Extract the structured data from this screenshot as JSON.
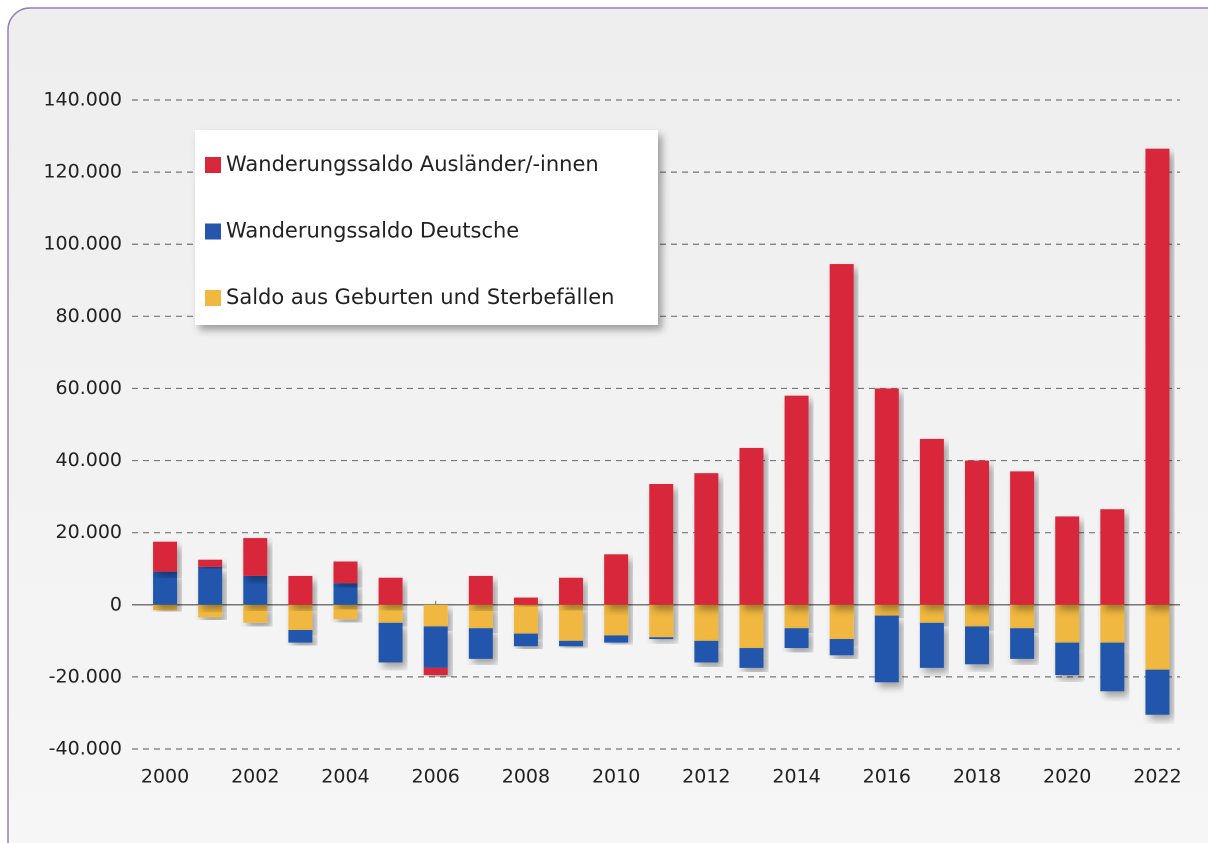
{
  "chart_data": {
    "type": "bar",
    "stacked": true,
    "categories": [
      "2000",
      null,
      "2002",
      null,
      "2004",
      null,
      "2006",
      null,
      "2008",
      null,
      "2010",
      null,
      "2012",
      null,
      "2014",
      null,
      "2016",
      null,
      "2018",
      null,
      "2020",
      null,
      "2022"
    ],
    "series": [
      {
        "name": "Wanderungssaldo Ausländer/-innen",
        "color": "#d8283a",
        "values": [
          8300,
          2000,
          10500,
          8000,
          6000,
          7500,
          -2000,
          8000,
          2000,
          7500,
          14000,
          33500,
          36500,
          43500,
          58000,
          94500,
          60000,
          46000,
          40000,
          37000,
          24500,
          26500,
          126500
        ]
      },
      {
        "name": "Wanderungssaldo Deutsche",
        "color": "#2456ad",
        "values": [
          9200,
          10500,
          8000,
          -3500,
          6000,
          -11000,
          -11500,
          -8500,
          -3500,
          -1500,
          -2000,
          -500,
          -6000,
          -5500,
          -5500,
          -4500,
          -18500,
          -12500,
          -10500,
          -8500,
          -9000,
          -13500,
          -12500
        ]
      },
      {
        "name": "Saldo aus Geburten und Sterbefällen",
        "color": "#f0b83f",
        "values": [
          -1500,
          -3500,
          -5000,
          -7000,
          -4000,
          -5000,
          -6000,
          -6500,
          -8000,
          -10000,
          -8500,
          -9000,
          -10000,
          -12000,
          -6500,
          -9500,
          -3000,
          -5000,
          -6000,
          -6500,
          -10500,
          -10500,
          -18000
        ]
      }
    ],
    "ylim": [
      -40000,
      140000
    ],
    "yticks": [
      {
        "value": -40000,
        "label": "-40.000"
      },
      {
        "value": -20000,
        "label": "-20.000"
      },
      0,
      {
        "value": 20000,
        "label": "20.000"
      },
      {
        "value": 40000,
        "label": "40.000"
      },
      {
        "value": 60000,
        "label": "60.000"
      },
      {
        "value": 80000,
        "label": "80.000"
      },
      {
        "value": 100000,
        "label": "100.000"
      },
      {
        "value": 120000,
        "label": "120.000"
      },
      {
        "value": 140000,
        "label": "140.000"
      }
    ],
    "grid": true,
    "legend": "upper left"
  }
}
